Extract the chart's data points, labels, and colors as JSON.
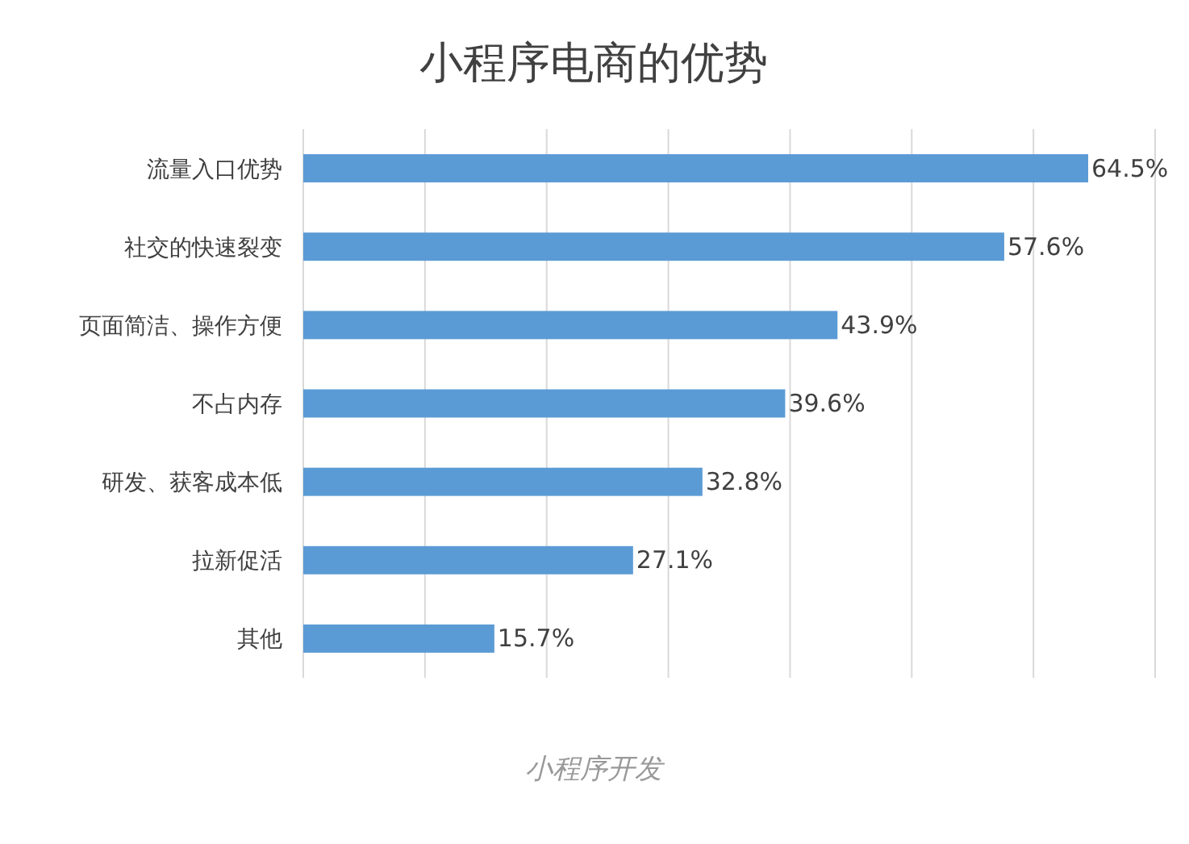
{
  "chart_data": {
    "type": "bar",
    "orientation": "horizontal",
    "title": "小程序电商的优势",
    "categories": [
      "流量入口优势",
      "社交的快速裂变",
      "页面简洁、操作方便",
      "不占内存",
      "研发、获客成本低",
      "拉新促活",
      "其他"
    ],
    "values": [
      64.5,
      57.6,
      43.9,
      39.6,
      32.8,
      27.1,
      15.7
    ],
    "value_labels": [
      "64.5%",
      "57.6%",
      "43.9%",
      "39.6%",
      "32.8%",
      "27.1%",
      "15.7%"
    ],
    "color": "#5b9bd5",
    "xlim": [
      0,
      70
    ],
    "xticks": [
      {
        "value": 0,
        "label": null
      },
      {
        "value": 10,
        "label": null
      },
      {
        "value": 20,
        "label": null
      },
      {
        "value": 30,
        "label": null
      },
      {
        "value": 40,
        "label": null
      },
      {
        "value": 50,
        "label": null
      },
      {
        "value": 60,
        "label": null
      },
      {
        "value": 70,
        "label": null
      }
    ],
    "grid": "x",
    "tick_labels": "y",
    "annotations": [
      "小程序开发"
    ]
  }
}
